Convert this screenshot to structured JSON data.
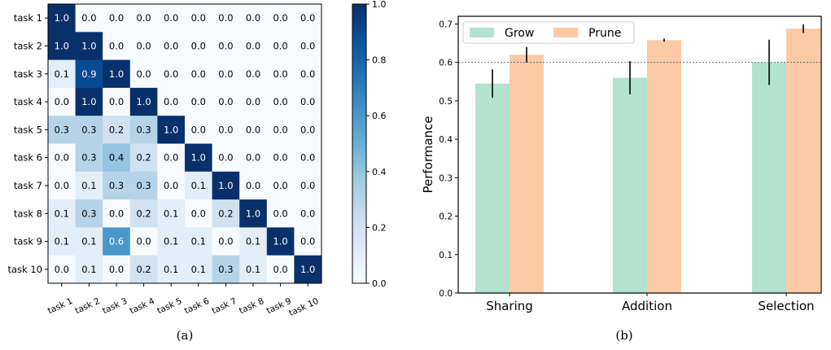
{
  "panels": {
    "a_caption": "(a)",
    "b_caption": "(b)"
  },
  "chart_data": [
    {
      "type": "heatmap",
      "rows": [
        "task 1",
        "task 2",
        "task 3",
        "task 4",
        "task 5",
        "task 6",
        "task 7",
        "task 8",
        "task 9",
        "task 10"
      ],
      "cols": [
        "task 1",
        "task 2",
        "task 3",
        "task 4",
        "task 5",
        "task 6",
        "task 7",
        "task 8",
        "task 9",
        "task 10"
      ],
      "values": [
        [
          1.0,
          0.0,
          0.0,
          0.0,
          0.0,
          0.0,
          0.0,
          0.0,
          0.0,
          0.0
        ],
        [
          1.0,
          1.0,
          0.0,
          0.0,
          0.0,
          0.0,
          0.0,
          0.0,
          0.0,
          0.0
        ],
        [
          0.1,
          0.9,
          1.0,
          0.0,
          0.0,
          0.0,
          0.0,
          0.0,
          0.0,
          0.0
        ],
        [
          0.0,
          1.0,
          0.0,
          1.0,
          0.0,
          0.0,
          0.0,
          0.0,
          0.0,
          0.0
        ],
        [
          0.3,
          0.3,
          0.2,
          0.3,
          1.0,
          0.0,
          0.0,
          0.0,
          0.0,
          0.0
        ],
        [
          0.0,
          0.3,
          0.4,
          0.2,
          0.0,
          1.0,
          0.0,
          0.0,
          0.0,
          0.0
        ],
        [
          0.0,
          0.1,
          0.3,
          0.3,
          0.0,
          0.1,
          1.0,
          0.0,
          0.0,
          0.0
        ],
        [
          0.1,
          0.3,
          0.0,
          0.2,
          0.1,
          0.0,
          0.2,
          1.0,
          0.0,
          0.0
        ],
        [
          0.1,
          0.1,
          0.6,
          0.0,
          0.1,
          0.1,
          0.0,
          0.1,
          1.0,
          0.0
        ],
        [
          0.0,
          0.1,
          0.0,
          0.2,
          0.1,
          0.1,
          0.3,
          0.1,
          0.0,
          1.0
        ]
      ],
      "vmin": 0.0,
      "vmax": 1.0,
      "colorbar_ticks": [
        "0.0",
        "0.2",
        "0.4",
        "0.6",
        "0.8",
        "1.0"
      ],
      "colormap": "Blues"
    },
    {
      "type": "bar",
      "categories": [
        "Sharing",
        "Addition",
        "Selection"
      ],
      "series": [
        {
          "name": "Grow",
          "values": [
            0.545,
            0.56,
            0.6
          ],
          "errors": [
            0.037,
            0.043,
            0.059
          ],
          "color": "#b3e3cf"
        },
        {
          "name": "Prune",
          "values": [
            0.62,
            0.658,
            0.688
          ],
          "errors": [
            0.02,
            0.004,
            0.011
          ],
          "color": "#fdcaa6"
        }
      ],
      "ylabel": "Performance",
      "ylim": [
        0.0,
        0.72
      ],
      "yticks": [
        "0.0",
        "0.1",
        "0.2",
        "0.3",
        "0.4",
        "0.5",
        "0.6",
        "0.7"
      ],
      "reference_line": 0.6,
      "legend_placement": "top-left"
    }
  ]
}
